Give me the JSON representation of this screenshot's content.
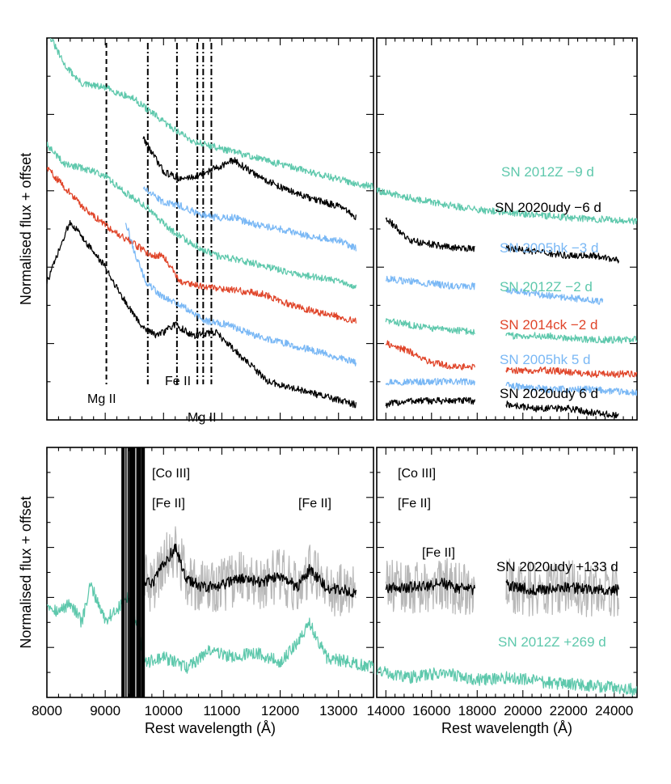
{
  "chart_data": [
    {
      "type": "line",
      "panel": "top-left",
      "ylabel": "Normalised flux + offset",
      "xlim": [
        8000,
        13600
      ],
      "xticks": [
        8000,
        9000,
        10000,
        11000,
        12000,
        13000
      ],
      "ylim": [
        0,
        1
      ],
      "line_markers": [
        {
          "x": 9020,
          "style": "dashed",
          "label": "Mg II"
        },
        {
          "x": 9730,
          "style": "dashdot"
        },
        {
          "x": 10230,
          "style": "dashdot",
          "label": "Fe II"
        },
        {
          "x": 10580,
          "style": "dashdot"
        },
        {
          "x": 10680,
          "style": "dashdot",
          "label": "Mg II"
        },
        {
          "x": 10820,
          "style": "dashdot"
        }
      ],
      "series": [
        {
          "name": "SN 2012Z −9 d",
          "color": "#5ec8ac",
          "x": [
            8000,
            8300,
            8600,
            9000,
            9500,
            10000,
            10500,
            11000,
            11500,
            12000,
            12500,
            13000,
            13600
          ],
          "y": [
            1.02,
            0.93,
            0.88,
            0.87,
            0.84,
            0.78,
            0.73,
            0.71,
            0.69,
            0.67,
            0.65,
            0.63,
            0.61
          ]
        },
        {
          "name": "SN 2020udy −6 d",
          "color": "#000000",
          "x": [
            9650,
            9800,
            10000,
            10300,
            10600,
            10900,
            11200,
            11600,
            12000,
            12500,
            13000,
            13300
          ],
          "y": [
            0.74,
            0.7,
            0.65,
            0.63,
            0.64,
            0.66,
            0.68,
            0.64,
            0.61,
            0.58,
            0.56,
            0.53
          ]
        },
        {
          "name": "SN 2005hk −3 d",
          "color": "#7ab8f5",
          "x": [
            9650,
            9800,
            10000,
            10300,
            10600,
            10900,
            11200,
            11600,
            12000,
            12500,
            13000,
            13300
          ],
          "y": [
            0.61,
            0.59,
            0.57,
            0.56,
            0.54,
            0.53,
            0.53,
            0.51,
            0.5,
            0.48,
            0.47,
            0.45
          ]
        },
        {
          "name": "SN 2012Z −2 d",
          "color": "#5ec8ac",
          "x": [
            8000,
            8300,
            8600,
            9000,
            9300,
            9700,
            10100,
            10500,
            10900,
            11300,
            11800,
            12300,
            12800,
            13300
          ],
          "y": [
            0.72,
            0.67,
            0.66,
            0.64,
            0.6,
            0.56,
            0.5,
            0.46,
            0.43,
            0.42,
            0.4,
            0.38,
            0.37,
            0.35
          ]
        },
        {
          "name": "SN 2014ck −2 d",
          "color": "#e0452a",
          "x": [
            8000,
            8300,
            8600,
            9000,
            9400,
            9800,
            10000,
            10300,
            10700,
            11200,
            11700,
            12200,
            12700,
            13300
          ],
          "y": [
            0.66,
            0.61,
            0.56,
            0.51,
            0.47,
            0.43,
            0.43,
            0.36,
            0.35,
            0.34,
            0.33,
            0.3,
            0.28,
            0.26
          ]
        },
        {
          "name": "SN 2005hk 5 d",
          "color": "#7ab8f5",
          "x": [
            9350,
            9500,
            9700,
            10000,
            10300,
            10700,
            11100,
            11600,
            12100,
            12600,
            13300
          ],
          "y": [
            0.52,
            0.44,
            0.36,
            0.32,
            0.3,
            0.26,
            0.25,
            0.22,
            0.2,
            0.18,
            0.15
          ]
        },
        {
          "name": "SN 2020udy 6 d",
          "color": "#000000",
          "x": [
            8000,
            8200,
            8400,
            8600,
            8800,
            9000,
            9300,
            9600,
            9900,
            10200,
            10500,
            10900,
            11300,
            11800,
            12300,
            12800,
            13300
          ],
          "y": [
            0.36,
            0.44,
            0.52,
            0.48,
            0.44,
            0.4,
            0.32,
            0.25,
            0.22,
            0.25,
            0.22,
            0.23,
            0.17,
            0.1,
            0.08,
            0.06,
            0.04
          ]
        }
      ]
    },
    {
      "type": "line",
      "panel": "top-right",
      "xlim": [
        13600,
        25000
      ],
      "xticks": [
        14000,
        16000,
        18000,
        20000,
        22000,
        24000
      ],
      "ylim": [
        0,
        1
      ],
      "series": [
        {
          "name": "SN 2012Z −9 d",
          "color": "#5ec8ac",
          "label": "SN 2012Z −9 d",
          "x": [
            13600,
            16000,
            18000,
            20000,
            22000,
            25000
          ],
          "y": [
            0.6,
            0.57,
            0.55,
            0.54,
            0.53,
            0.52
          ]
        },
        {
          "name": "SN 2020udy −6 d",
          "color": "#000000",
          "label": "SN 2020udy −6 d",
          "x": [
            14000,
            15000,
            16000,
            17000,
            17800,
            19300,
            20500,
            22000,
            23000,
            24200
          ],
          "y": [
            0.53,
            0.47,
            0.46,
            0.45,
            0.45,
            0.45,
            0.44,
            0.43,
            0.43,
            0.42
          ]
        },
        {
          "name": "SN 2005hk −3 d",
          "color": "#7ab8f5",
          "label": "SN 2005hk −3 d",
          "x": [
            14000,
            15500,
            17000,
            18000,
            19300,
            20500,
            22000,
            23500
          ],
          "y": [
            0.37,
            0.36,
            0.35,
            0.35,
            0.34,
            0.33,
            0.32,
            0.31
          ]
        },
        {
          "name": "SN 2012Z −2 d",
          "color": "#5ec8ac",
          "label": "SN 2012Z −2 d",
          "x": [
            14000,
            16000,
            18000,
            19600,
            21000,
            23000,
            25000
          ],
          "y": [
            0.26,
            0.24,
            0.23,
            0.22,
            0.22,
            0.21,
            0.21
          ]
        },
        {
          "name": "SN 2014ck −2 d",
          "color": "#e0452a",
          "label": "SN 2014ck −2 d",
          "x": [
            14000,
            15000,
            16000,
            17000,
            18000,
            19400,
            21000,
            23000,
            25000
          ],
          "y": [
            0.2,
            0.18,
            0.15,
            0.14,
            0.14,
            0.13,
            0.13,
            0.12,
            0.12
          ]
        },
        {
          "name": "SN 2005hk 5 d",
          "color": "#7ab8f5",
          "label": "SN 2005hk 5 d",
          "x": [
            14000,
            16000,
            18000,
            19300,
            21000,
            23000,
            25000
          ],
          "y": [
            0.1,
            0.1,
            0.1,
            0.09,
            0.08,
            0.08,
            0.07
          ]
        },
        {
          "name": "SN 2020udy 6 d",
          "color": "#000000",
          "label": "SN 2020udy 6 d",
          "x": [
            14000,
            15000,
            16000,
            17000,
            17800,
            19400,
            20500,
            22000,
            23000,
            24200
          ],
          "y": [
            0.04,
            0.05,
            0.05,
            0.05,
            0.05,
            0.04,
            0.03,
            0.03,
            0.02,
            0.01
          ]
        }
      ]
    },
    {
      "type": "line",
      "panel": "bottom-left",
      "ylabel": "Normalised flux + offset",
      "xlabel": "Rest wavelength (Å)",
      "xlim": [
        8000,
        13600
      ],
      "xticks": [
        8000,
        9000,
        10000,
        11000,
        12000,
        13000
      ],
      "tick_labels": [
        "8000",
        "9000",
        "10000",
        "11000",
        "12000",
        "13000"
      ],
      "ylim": [
        0,
        1
      ],
      "annotations": [
        {
          "text": "[Co III]",
          "x": 10250,
          "y": 0.87
        },
        {
          "text": "[Fe II]",
          "x": 10050,
          "y": 0.74
        },
        {
          "text": "[Fe II]",
          "x": 12500,
          "y": 0.74
        }
      ],
      "series": [
        {
          "name": "SN 2020udy +133 d",
          "color": "#000000",
          "x": [
            9650,
            9800,
            10000,
            10200,
            10400,
            10700,
            11000,
            11300,
            11700,
            12000,
            12300,
            12500,
            12800,
            13300
          ],
          "y": [
            0.47,
            0.45,
            0.53,
            0.6,
            0.47,
            0.44,
            0.45,
            0.48,
            0.46,
            0.49,
            0.44,
            0.51,
            0.44,
            0.42
          ]
        },
        {
          "name": "SN 2012Z +269 d",
          "color": "#5ec8ac",
          "x": [
            8000,
            8200,
            8400,
            8600,
            8750,
            9000,
            9200,
            9400,
            9700,
            10000,
            10400,
            10800,
            11200,
            11600,
            12000,
            12300,
            12500,
            12800,
            13200,
            13600
          ],
          "y": [
            0.38,
            0.34,
            0.38,
            0.3,
            0.45,
            0.31,
            0.35,
            0.4,
            0.14,
            0.16,
            0.12,
            0.19,
            0.16,
            0.18,
            0.14,
            0.22,
            0.3,
            0.16,
            0.14,
            0.12
          ]
        }
      ]
    },
    {
      "type": "line",
      "panel": "bottom-right",
      "xlabel": "Rest wavelength (Å)",
      "xlim": [
        13600,
        25000
      ],
      "xticks": [
        14000,
        16000,
        18000,
        20000,
        22000,
        24000
      ],
      "tick_labels": [
        "14000",
        "16000",
        "18000",
        "20000",
        "22000",
        "24000"
      ],
      "ylim": [
        0,
        1
      ],
      "annotations": [
        {
          "text": "[Co III]",
          "x": 15300,
          "y": 0.87
        },
        {
          "text": "[Fe II]",
          "x": 15000,
          "y": 0.74
        },
        {
          "text": "[Fe II]",
          "x": 16500,
          "y": 0.58
        }
      ],
      "series": [
        {
          "name": "SN 2020udy +133 d",
          "color": "#000000",
          "label": "SN 2020udy +133 d",
          "x": [
            14000,
            15000,
            16000,
            16500,
            17000,
            17800,
            19300,
            20500,
            22000,
            23000,
            24200
          ],
          "y": [
            0.44,
            0.44,
            0.45,
            0.46,
            0.44,
            0.43,
            0.45,
            0.43,
            0.44,
            0.43,
            0.43
          ]
        },
        {
          "name": "SN 2012Z +269 d",
          "color": "#5ec8ac",
          "label": "SN 2012Z +269 d",
          "x": [
            13600,
            15000,
            16500,
            18000,
            19500,
            21000,
            22500,
            24000,
            25000
          ],
          "y": [
            0.11,
            0.08,
            0.1,
            0.07,
            0.08,
            0.06,
            0.05,
            0.04,
            0.03
          ]
        }
      ]
    }
  ]
}
